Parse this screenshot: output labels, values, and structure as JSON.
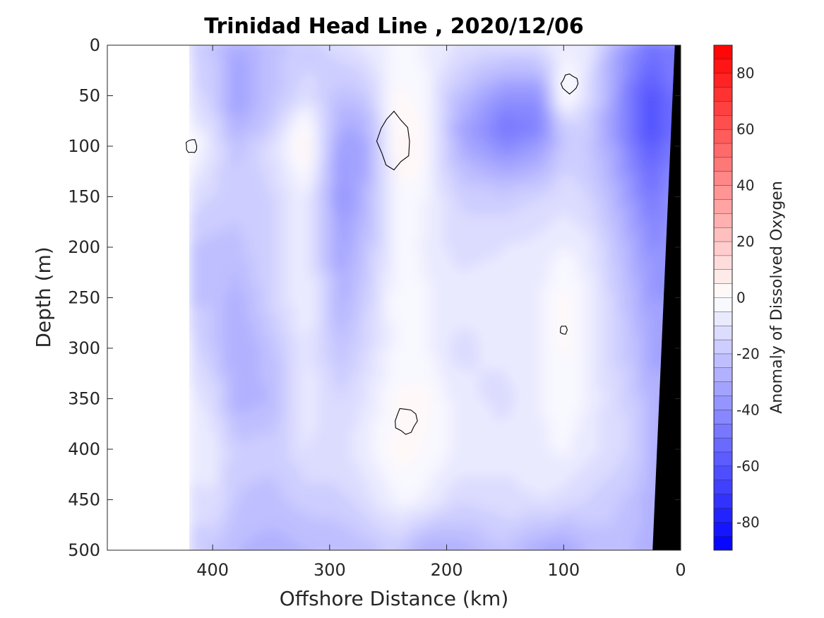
{
  "chart_data": {
    "type": "heatmap",
    "title": "Trinidad Head Line , 2020/12/06",
    "xlabel": "Offshore Distance (km)",
    "ylabel": "Depth (m)",
    "xlim": [
      490,
      0
    ],
    "ylim": [
      0,
      500
    ],
    "x_reversed": true,
    "y_reversed": true,
    "x_ticks": [
      400,
      300,
      200,
      100,
      0
    ],
    "y_ticks": [
      0,
      50,
      100,
      150,
      200,
      250,
      300,
      350,
      400,
      450,
      500
    ],
    "data_extent_km": [
      0,
      420
    ],
    "colorbar": {
      "label": "Anomaly of Dissolved Oxygen",
      "range": [
        -90,
        90
      ],
      "levels": 36,
      "ticks": [
        80,
        60,
        40,
        20,
        0,
        -20,
        -40,
        -60,
        -80
      ],
      "low_color": "#0000ff",
      "mid_color": "#ffffff",
      "high_color": "#ff0000"
    },
    "anomaly_field": {
      "description": "Interpolated dissolved-oxygen anomaly values (data units) on a distance/depth grid",
      "distance_km": [
        420,
        400,
        380,
        350,
        320,
        290,
        270,
        240,
        220,
        190,
        150,
        120,
        100,
        80,
        60,
        40,
        25,
        10
      ],
      "depth_m": [
        0,
        50,
        80,
        100,
        150,
        200,
        250,
        300,
        350,
        400,
        450,
        500
      ],
      "values": [
        [
          -15,
          -20,
          -30,
          -22,
          -18,
          -12,
          -8,
          -3,
          -5,
          -10,
          -12,
          -10,
          -6,
          -8,
          -25,
          -40,
          -50,
          -45
        ],
        [
          -12,
          -18,
          -35,
          -22,
          -12,
          -22,
          -20,
          2,
          -3,
          -22,
          -38,
          -38,
          3,
          -10,
          -30,
          -52,
          -60,
          -50
        ],
        [
          -6,
          -12,
          -28,
          -18,
          2,
          -30,
          -28,
          5,
          0,
          -30,
          -48,
          -45,
          -15,
          -18,
          -32,
          -52,
          -65,
          -52
        ],
        [
          2,
          -10,
          -22,
          -12,
          6,
          -35,
          -32,
          6,
          2,
          -28,
          -42,
          -35,
          -18,
          -20,
          -30,
          -48,
          -58,
          -48
        ],
        [
          -12,
          -15,
          -18,
          -15,
          -6,
          -38,
          -28,
          0,
          -4,
          -16,
          -18,
          -15,
          -12,
          -15,
          -24,
          -38,
          -48,
          -40
        ],
        [
          -20,
          -22,
          -22,
          -15,
          -6,
          -32,
          -22,
          -2,
          -6,
          -12,
          -10,
          -8,
          -5,
          -8,
          -18,
          -30,
          -40,
          -38
        ],
        [
          -22,
          -20,
          -28,
          -15,
          -5,
          -28,
          -18,
          0,
          -4,
          -8,
          -8,
          -6,
          2,
          -5,
          -15,
          -25,
          -35,
          -35
        ],
        [
          -12,
          -20,
          -30,
          -22,
          -8,
          -22,
          -14,
          -2,
          -4,
          -12,
          -8,
          -5,
          1,
          -5,
          -14,
          -22,
          -32,
          -32
        ],
        [
          -8,
          -12,
          -28,
          -25,
          -8,
          -15,
          -10,
          1,
          2,
          -8,
          -12,
          -6,
          0,
          -6,
          -12,
          -18,
          -28,
          -28
        ],
        [
          -6,
          -8,
          -18,
          -18,
          -10,
          -12,
          -6,
          3,
          0,
          -6,
          -8,
          -6,
          -4,
          -8,
          -12,
          -16,
          -25,
          -25
        ],
        [
          -12,
          -10,
          -20,
          -22,
          -18,
          -16,
          -12,
          -4,
          -5,
          -14,
          -12,
          -10,
          -12,
          -15,
          -18,
          -22,
          -28,
          -28
        ],
        [
          -18,
          -20,
          -25,
          -28,
          -25,
          -25,
          -22,
          -18,
          -30,
          -28,
          -20,
          -30,
          -32,
          -25,
          -22,
          -25,
          -30,
          -30
        ]
      ]
    },
    "zero_contours": [
      {
        "label": "0",
        "near_km": 245,
        "near_depth_m": 95
      },
      {
        "label": "0",
        "near_km": 95,
        "near_depth_m": 38
      },
      {
        "label": "0",
        "near_km": 235,
        "near_depth_m": 372
      },
      {
        "label": "0",
        "near_km": 100,
        "near_depth_m": 282
      },
      {
        "label": "0",
        "near_km": 418,
        "near_depth_m": 100
      }
    ],
    "bathymetry": {
      "color": "#000000",
      "seafloor_km_at_depth": [
        [
          0,
          5
        ],
        [
          500,
          24
        ]
      ]
    }
  }
}
